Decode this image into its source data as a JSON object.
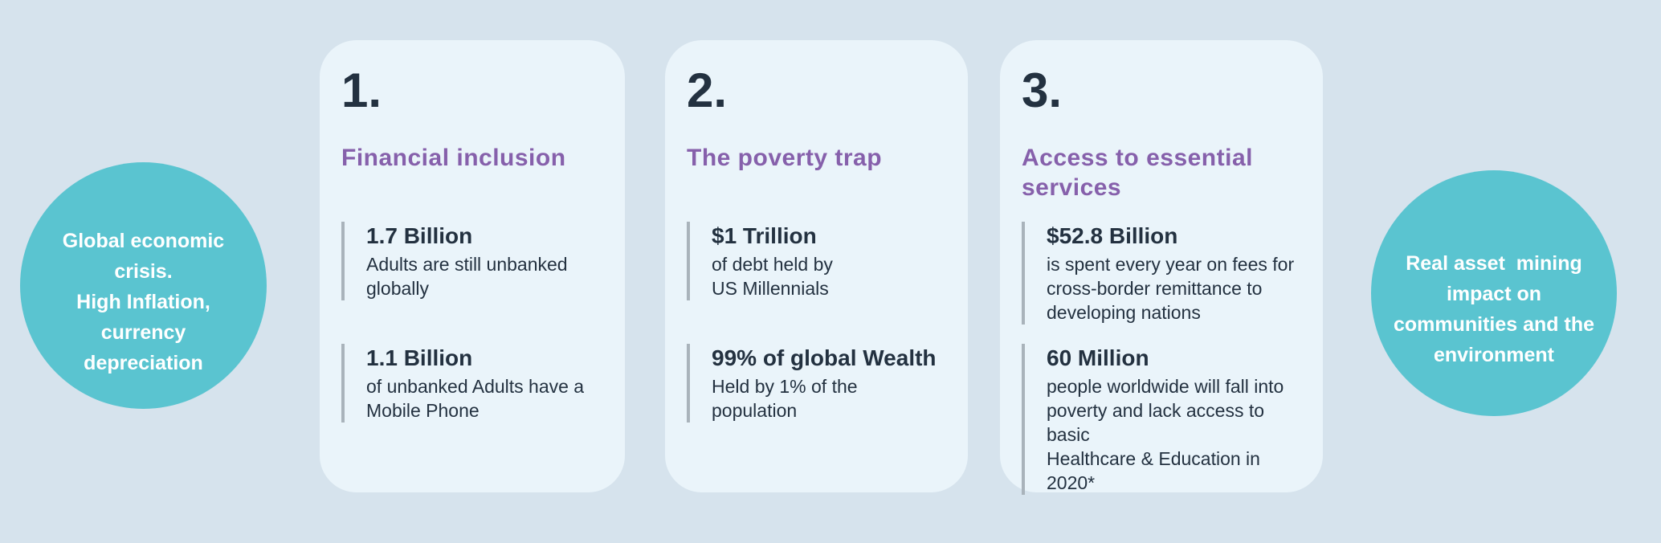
{
  "colors": {
    "background": "#d6e3ed",
    "card_background": "#eaf4fa",
    "circle_background": "#5ac4d0",
    "circle_text": "#ffffff",
    "title_purple": "#8660ab",
    "text_dark_navy": "#233140",
    "stat_bar_gray": "#a9b3bb"
  },
  "left_circle": {
    "text": "Global economic\ncrisis.\nHigh Inflation,\ncurrency\ndepreciation"
  },
  "right_circle": {
    "text": "Real asset  mining\nimpact on\ncommunities and the\nenvironment"
  },
  "cards": [
    {
      "number": "1.",
      "title": "Financial inclusion",
      "stats": [
        {
          "value": "1.7 Billion",
          "description": "Adults are still unbanked\nglobally"
        },
        {
          "value": "1.1 Billion",
          "description": "of unbanked Adults have a\nMobile Phone"
        }
      ]
    },
    {
      "number": "2.",
      "title": "The poverty trap",
      "stats": [
        {
          "value": "$1 Trillion",
          "description": "of debt held by\nUS Millennials"
        },
        {
          "value": "99% of global Wealth",
          "description": "Held by 1% of the\npopulation"
        }
      ]
    },
    {
      "number": "3.",
      "title": "Access to essential\nservices",
      "stats": [
        {
          "value": "$52.8 Billion",
          "description": "is spent every year on fees for\ncross-border remittance to\ndeveloping nations"
        },
        {
          "value": "60 Million",
          "description": "people worldwide will fall into\npoverty and lack access to basic\nHealthcare & Education in 2020*"
        }
      ]
    }
  ]
}
